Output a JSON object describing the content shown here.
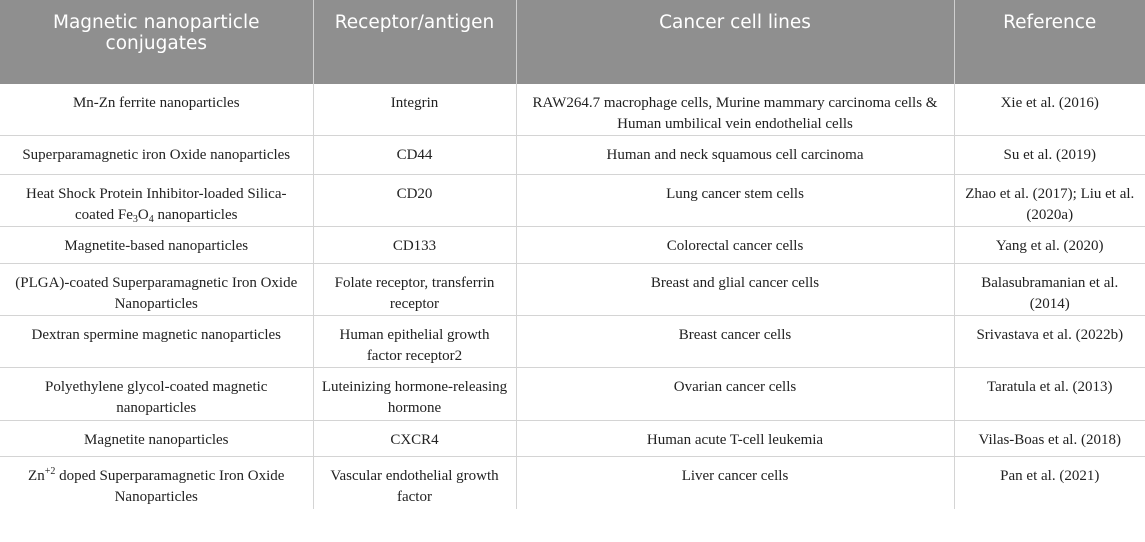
{
  "table": {
    "headers": [
      "Magnetic nanoparticle conjugates",
      "Receptor/antigen",
      "Cancer cell lines",
      "Reference"
    ],
    "rows": [
      {
        "conjugate": "Mn-Zn ferrite nanoparticles",
        "receptor": "Integrin",
        "cell_lines": "RAW264.7 macrophage cells, Murine mammary carcinoma cells & Human umbilical vein endothelial cells",
        "reference": "Xie et al. (2016)"
      },
      {
        "conjugate": "Superparamagnetic iron Oxide nanoparticles",
        "receptor": "CD44",
        "cell_lines": "Human and neck squamous cell carcinoma",
        "reference": "Su et al. (2019)"
      },
      {
        "conjugate_prefix": "Heat Shock Protein Inhibitor-loaded Silica-coated Fe",
        "conjugate_sub1": "3",
        "conjugate_mid": "O",
        "conjugate_sub2": "4",
        "conjugate_suffix": " nanoparticles",
        "receptor": "CD20",
        "cell_lines": "Lung cancer stem cells",
        "reference": "Zhao et al. (2017); Liu et al. (2020a)"
      },
      {
        "conjugate": "Magnetite-based nanoparticles",
        "receptor": "CD133",
        "cell_lines": "Colorectal cancer cells",
        "reference": "Yang et al. (2020)"
      },
      {
        "conjugate": "(PLGA)-coated Superparamagnetic Iron Oxide Nanoparticles",
        "receptor": "Folate receptor, transferrin receptor",
        "cell_lines": "Breast and glial cancer cells",
        "reference": "Balasubramanian et al. (2014)"
      },
      {
        "conjugate": "Dextran spermine magnetic nanoparticles",
        "receptor": "Human epithelial growth factor receptor2",
        "cell_lines": "Breast cancer cells",
        "reference": "Srivastava et al. (2022b)"
      },
      {
        "conjugate": "Polyethylene glycol-coated magnetic nanoparticles",
        "receptor": "Luteinizing hormone-releasing hormone",
        "cell_lines": "Ovarian cancer cells",
        "reference": "Taratula et al. (2013)"
      },
      {
        "conjugate": "Magnetite nanoparticles",
        "receptor": "CXCR4",
        "cell_lines": "Human acute T-cell leukemia",
        "reference": "Vilas-Boas et al. (2018)"
      },
      {
        "conjugate_prefix": "Zn",
        "conjugate_sup": "+2",
        "conjugate_suffix": " doped Superparamagnetic Iron Oxide Nanoparticles",
        "receptor": "Vascular endothelial growth factor",
        "cell_lines": "Liver cancer cells",
        "reference": "Pan et al. (2021)"
      }
    ]
  }
}
